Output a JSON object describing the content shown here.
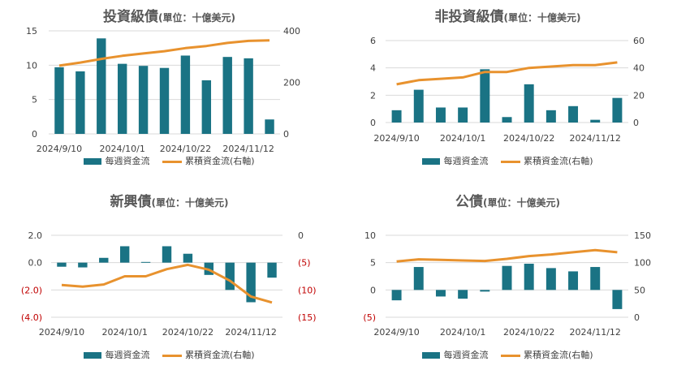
{
  "colors": {
    "bar": "#1a7384",
    "line": "#e8922e",
    "grid": "#d9d9d9",
    "negative_tick": "#c00000"
  },
  "legend": {
    "bar": "每週資金流",
    "line": "累積資金流(右軸)"
  },
  "chart_data": [
    {
      "type": "bar",
      "title": "投資級債",
      "subtitle": "(單位：十億美元)",
      "x_tick_labels": [
        "2024/9/10",
        "2024/10/1",
        "2024/10/22",
        "2024/11/12"
      ],
      "y_left": {
        "min": 0,
        "max": 15,
        "ticks": [
          "0",
          "5",
          "10",
          "15"
        ]
      },
      "y_right": {
        "min": 0,
        "max": 400,
        "ticks": [
          "0",
          "200",
          "400"
        ]
      },
      "series": [
        {
          "name": "每週資金流",
          "type": "bar",
          "axis": "left",
          "values": [
            9.7,
            9.1,
            13.9,
            10.2,
            9.9,
            9.6,
            11.4,
            7.8,
            11.2,
            11.0,
            2.1
          ]
        },
        {
          "name": "累積資金流(右軸)",
          "type": "line",
          "axis": "right",
          "values": [
            265,
            277,
            291,
            303,
            312,
            321,
            333,
            341,
            353,
            361,
            363
          ]
        }
      ]
    },
    {
      "type": "bar",
      "title": "非投資級債",
      "subtitle": "(單位：十億美元)",
      "x_tick_labels": [
        "2024/9/10",
        "2024/10/1",
        "2024/10/22",
        "2024/11/12"
      ],
      "y_left": {
        "min": 0,
        "max": 6,
        "ticks": [
          "0",
          "2",
          "4",
          "6"
        ]
      },
      "y_right": {
        "min": 0,
        "max": 60,
        "ticks": [
          "0",
          "20",
          "40",
          "60"
        ]
      },
      "series": [
        {
          "name": "每週資金流",
          "type": "bar",
          "axis": "left",
          "values": [
            0.9,
            2.4,
            1.1,
            1.1,
            3.9,
            0.4,
            2.8,
            0.9,
            1.2,
            0.2,
            1.8
          ]
        },
        {
          "name": "累積資金流(右軸)",
          "type": "line",
          "axis": "right",
          "values": [
            28,
            31,
            32,
            33,
            37,
            37,
            40,
            41,
            42,
            42,
            44
          ]
        }
      ]
    },
    {
      "type": "bar",
      "title": "新興債",
      "subtitle": "(單位：十億美元)",
      "x_tick_labels": [
        "2024/9/10",
        "2024/10/1",
        "2024/10/22",
        "2024/11/12"
      ],
      "y_left": {
        "min": -4,
        "max": 2,
        "ticks": [
          "2.0",
          "0.0",
          "(2.0)",
          "(4.0)"
        ],
        "tick_values": [
          2,
          0,
          -2,
          -4
        ]
      },
      "y_right": {
        "min": -15,
        "max": 0,
        "ticks": [
          "0",
          "(5)",
          "(10)",
          "(15)"
        ],
        "tick_values": [
          0,
          -5,
          -10,
          -15
        ]
      },
      "series": [
        {
          "name": "每週資金流",
          "type": "bar",
          "axis": "left",
          "values": [
            -0.3,
            -0.35,
            0.35,
            1.2,
            0.05,
            1.2,
            0.65,
            -0.9,
            -2.0,
            -2.9,
            -1.1
          ]
        },
        {
          "name": "累積資金流(右軸)",
          "type": "line",
          "axis": "right",
          "values": [
            -9.1,
            -9.4,
            -9.0,
            -7.5,
            -7.5,
            -6.2,
            -5.4,
            -6.3,
            -8.3,
            -11.2,
            -12.3
          ]
        }
      ]
    },
    {
      "type": "bar",
      "title": "公債",
      "subtitle": "(單位：十億美元)",
      "x_tick_labels": [
        "2024/9/10",
        "2024/10/1",
        "2024/10/22",
        "2024/11/12"
      ],
      "y_left": {
        "min": -5,
        "max": 10,
        "ticks": [
          "10",
          "5",
          "0",
          "(5)"
        ],
        "tick_values": [
          10,
          5,
          0,
          -5
        ]
      },
      "y_right": {
        "min": 0,
        "max": 150,
        "ticks": [
          "150",
          "100",
          "50",
          "0"
        ],
        "tick_values": [
          150,
          100,
          50,
          0
        ]
      },
      "series": [
        {
          "name": "每週資金流",
          "type": "bar",
          "axis": "left",
          "values": [
            -1.9,
            4.2,
            -1.2,
            -1.6,
            -0.3,
            4.4,
            4.8,
            4.0,
            3.4,
            4.2,
            -3.5
          ]
        },
        {
          "name": "累積資金流(右軸)",
          "type": "line",
          "axis": "right",
          "values": [
            102,
            106,
            105,
            104,
            103,
            107,
            112,
            115,
            119,
            123,
            119
          ]
        }
      ]
    }
  ]
}
